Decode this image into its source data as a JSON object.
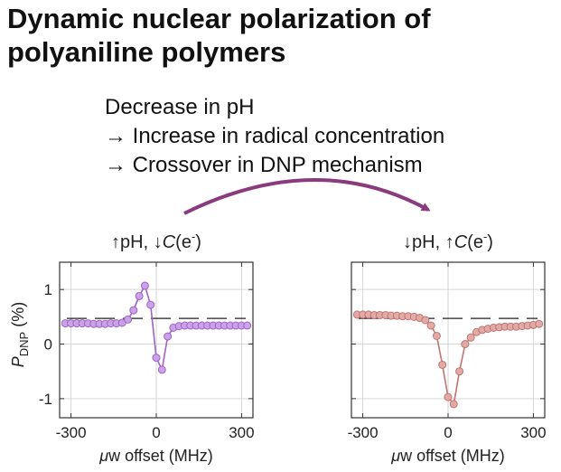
{
  "title": {
    "line1": "Dynamic nuclear polarization of",
    "line2": "polyaniline polymers"
  },
  "notes": [
    "Decrease in pH",
    "→ Increase in radical concentration",
    "→ Crossover in DNP mechanism"
  ],
  "colors": {
    "left_series": "#a062c6",
    "left_marker_fill": "#c9a3e6",
    "right_series": "#c07572",
    "right_marker_fill": "#e2aaa6",
    "arrow": "#8a3a7e",
    "reference_line": "#222222",
    "grid": "#d6d6d6"
  },
  "chart_data": [
    {
      "type": "line",
      "title_prefix": "↑pH, ↓",
      "title_symbol": "C",
      "title_suffix": "(e",
      "title_superscript": "-",
      "title_close": ")",
      "ylabel": "P",
      "ylabel_sub": "DNP",
      "ylabel_unit": "(%)",
      "xlabel_mu": "μ",
      "xlabel_rest": "w offset (MHz)",
      "xlim": [
        -340,
        340
      ],
      "ylim": [
        -1.35,
        1.5
      ],
      "xticks": [
        -300,
        0,
        300
      ],
      "xtick_labels": [
        "-300",
        "0",
        "300"
      ],
      "yticks": [
        1,
        0,
        -1
      ],
      "ytick_labels": [
        "1",
        "0",
        "-1"
      ],
      "grid": true,
      "reference_y": 0.47,
      "reference_style": "dashed",
      "series": [
        {
          "x": [
            -320,
            -300,
            -280,
            -260,
            -240,
            -220,
            -200,
            -180,
            -160,
            -140,
            -120,
            -100,
            -80,
            -60,
            -40,
            -20,
            0,
            20,
            40,
            60,
            80,
            100,
            120,
            140,
            160,
            180,
            200,
            220,
            240,
            260,
            280,
            300,
            320
          ],
          "y": [
            0.38,
            0.38,
            0.38,
            0.38,
            0.38,
            0.37,
            0.37,
            0.37,
            0.38,
            0.38,
            0.39,
            0.45,
            0.62,
            0.88,
            1.07,
            0.72,
            -0.25,
            -0.47,
            0.14,
            0.3,
            0.33,
            0.34,
            0.34,
            0.34,
            0.34,
            0.34,
            0.34,
            0.34,
            0.34,
            0.34,
            0.34,
            0.34,
            0.34
          ]
        }
      ]
    },
    {
      "type": "line",
      "title_prefix": "↓pH, ↑",
      "title_symbol": "C",
      "title_suffix": "(e",
      "title_superscript": "-",
      "title_close": ")",
      "xlabel_mu": "μ",
      "xlabel_rest": "w offset (MHz)",
      "xlim": [
        -340,
        340
      ],
      "ylim": [
        -1.35,
        1.5
      ],
      "xticks": [
        -300,
        0,
        300
      ],
      "xtick_labels": [
        "-300",
        "0",
        "300"
      ],
      "yticks": [
        1,
        0,
        -1
      ],
      "grid": true,
      "reference_y": 0.47,
      "reference_style": "dashed",
      "series": [
        {
          "x": [
            -320,
            -300,
            -280,
            -260,
            -240,
            -220,
            -200,
            -180,
            -160,
            -140,
            -120,
            -100,
            -80,
            -60,
            -40,
            -20,
            0,
            20,
            40,
            60,
            80,
            100,
            120,
            140,
            160,
            180,
            200,
            220,
            240,
            260,
            280,
            300,
            320
          ],
          "y": [
            0.54,
            0.54,
            0.54,
            0.53,
            0.53,
            0.53,
            0.52,
            0.52,
            0.51,
            0.51,
            0.5,
            0.48,
            0.44,
            0.34,
            0.15,
            -0.38,
            -0.97,
            -1.1,
            -0.5,
            0.0,
            0.12,
            0.22,
            0.26,
            0.28,
            0.3,
            0.31,
            0.32,
            0.32,
            0.32,
            0.33,
            0.34,
            0.35,
            0.37
          ]
        }
      ]
    }
  ]
}
